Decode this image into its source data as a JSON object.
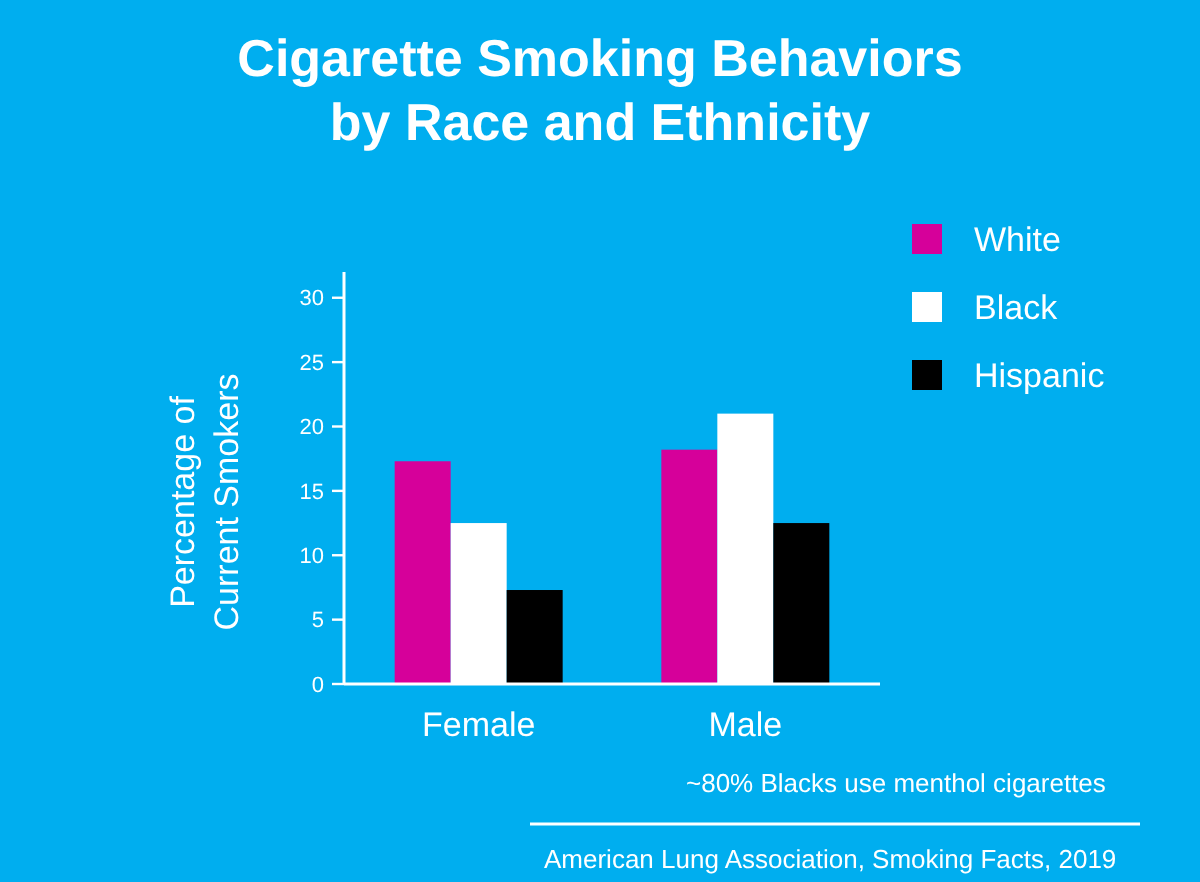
{
  "chart_data": {
    "type": "bar",
    "title": "Cigarette Smoking Behaviors by  Race and Ethnicity",
    "ylabel": "Percentage of Current Smokers",
    "categories": [
      "Female",
      "Male"
    ],
    "series": [
      {
        "name": "White",
        "color": "#d6009a",
        "values": [
          17.3,
          18.2
        ]
      },
      {
        "name": "Black",
        "color": "#ffffff",
        "values": [
          12.5,
          21.0
        ]
      },
      {
        "name": "Hispanic",
        "color": "#000000",
        "values": [
          7.3,
          12.5
        ]
      }
    ],
    "ylim": [
      0,
      32
    ],
    "yticks": [
      0,
      5,
      10,
      15,
      20,
      25,
      30
    ],
    "grid": false,
    "legend": "right",
    "annotations": [
      "~80% Blacks use menthol cigarettes",
      "American Lung Association, Smoking Facts, 2019"
    ]
  }
}
